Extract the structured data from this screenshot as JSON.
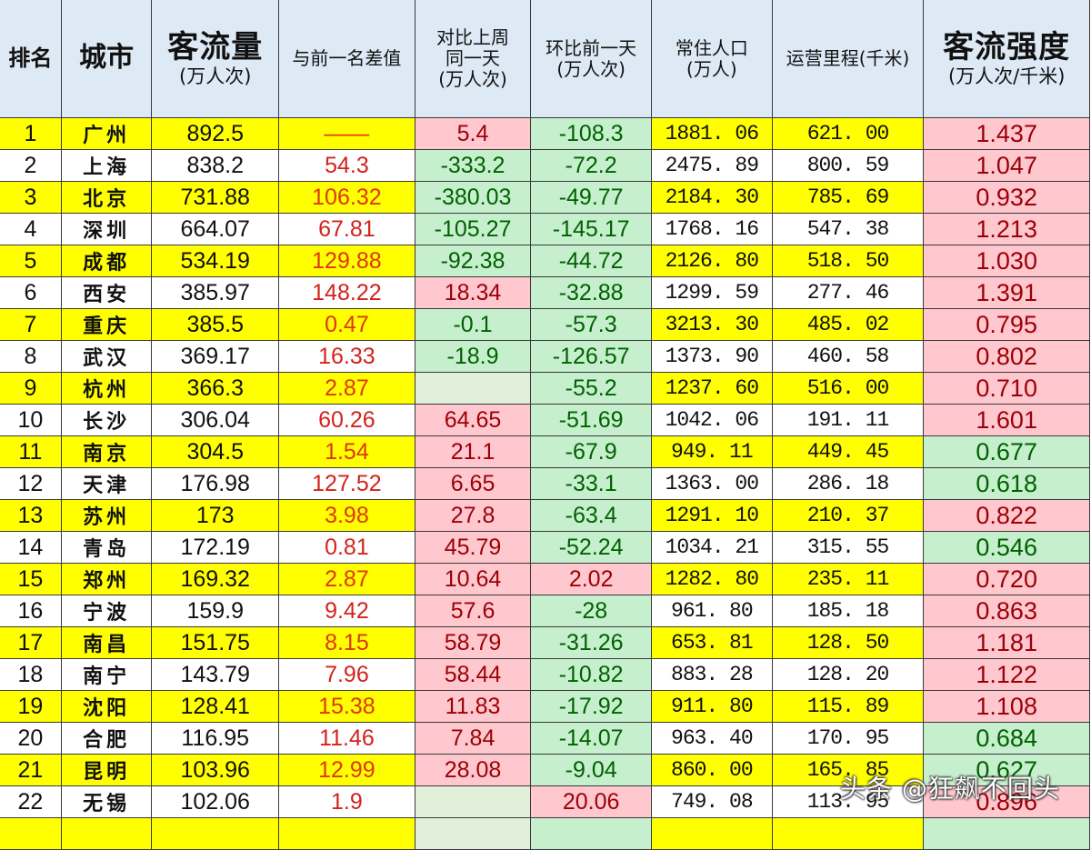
{
  "header": {
    "rank": "排名",
    "city": "城市",
    "flow_title": "客流量",
    "flow_unit": "(万人次)",
    "diff_prev": "与前一名差值",
    "week_title_1": "对比上周",
    "week_title_2": "同一天",
    "week_unit": "(万人次)",
    "day_title": "环比前一天",
    "day_unit": "(万人次)",
    "pop_title": "常住人口",
    "pop_unit": "(万人)",
    "mileage_title": "运营里程(千米)",
    "intensity_title": "客流强度",
    "intensity_unit": "(万人次/千米)"
  },
  "colors": {
    "header_bg": "#dde9f5",
    "highlight_yellow": "#ffff00",
    "positive_pink_bg": "#ffc7ce",
    "positive_pink_text": "#9c0006",
    "negative_green_bg": "#c6efce",
    "negative_green_text": "#006100",
    "diff_red": "#d2231c"
  },
  "rows": [
    {
      "rank": "1",
      "city": "广州",
      "flow": "892.5",
      "diff": "——",
      "week": "5.4",
      "week_c": "pink",
      "day": "-108.3",
      "day_c": "green",
      "pop": "1881. 06",
      "mileage": "621. 00",
      "intensity": "1.437",
      "int_c": "pink"
    },
    {
      "rank": "2",
      "city": "上海",
      "flow": "838.2",
      "diff": "54.3",
      "week": "-333.2",
      "week_c": "green",
      "day": "-72.2",
      "day_c": "green",
      "pop": "2475. 89",
      "mileage": "800. 59",
      "intensity": "1.047",
      "int_c": "pink"
    },
    {
      "rank": "3",
      "city": "北京",
      "flow": "731.88",
      "diff": "106.32",
      "week": "-380.03",
      "week_c": "green",
      "day": "-49.77",
      "day_c": "green",
      "pop": "2184. 30",
      "mileage": "785. 69",
      "intensity": "0.932",
      "int_c": "pink"
    },
    {
      "rank": "4",
      "city": "深圳",
      "flow": "664.07",
      "diff": "67.81",
      "week": "-105.27",
      "week_c": "green",
      "day": "-145.17",
      "day_c": "green",
      "pop": "1768. 16",
      "mileage": "547. 38",
      "intensity": "1.213",
      "int_c": "pink"
    },
    {
      "rank": "5",
      "city": "成都",
      "flow": "534.19",
      "diff": "129.88",
      "week": "-92.38",
      "week_c": "green",
      "day": "-44.72",
      "day_c": "green",
      "pop": "2126. 80",
      "mileage": "518. 50",
      "intensity": "1.030",
      "int_c": "pink"
    },
    {
      "rank": "6",
      "city": "西安",
      "flow": "385.97",
      "diff": "148.22",
      "week": "18.34",
      "week_c": "pink",
      "day": "-32.88",
      "day_c": "green",
      "pop": "1299. 59",
      "mileage": "277. 46",
      "intensity": "1.391",
      "int_c": "pink"
    },
    {
      "rank": "7",
      "city": "重庆",
      "flow": "385.5",
      "diff": "0.47",
      "week": "-0.1",
      "week_c": "green",
      "day": "-57.3",
      "day_c": "green",
      "pop": "3213. 30",
      "mileage": "485. 02",
      "intensity": "0.795",
      "int_c": "pink"
    },
    {
      "rank": "8",
      "city": "武汉",
      "flow": "369.17",
      "diff": "16.33",
      "week": "-18.9",
      "week_c": "green",
      "day": "-126.57",
      "day_c": "green",
      "pop": "1373. 90",
      "mileage": "460. 58",
      "intensity": "0.802",
      "int_c": "pink"
    },
    {
      "rank": "9",
      "city": "杭州",
      "flow": "366.3",
      "diff": "2.87",
      "week": "",
      "week_c": "blank",
      "day": "-55.2",
      "day_c": "green",
      "pop": "1237. 60",
      "mileage": "516. 00",
      "intensity": "0.710",
      "int_c": "pink"
    },
    {
      "rank": "10",
      "city": "长沙",
      "flow": "306.04",
      "diff": "60.26",
      "week": "64.65",
      "week_c": "pink",
      "day": "-51.69",
      "day_c": "green",
      "pop": "1042. 06",
      "mileage": "191. 11",
      "intensity": "1.601",
      "int_c": "pink"
    },
    {
      "rank": "11",
      "city": "南京",
      "flow": "304.5",
      "diff": "1.54",
      "week": "21.1",
      "week_c": "pink",
      "day": "-67.9",
      "day_c": "green",
      "pop": "949. 11",
      "mileage": "449. 45",
      "intensity": "0.677",
      "int_c": "green"
    },
    {
      "rank": "12",
      "city": "天津",
      "flow": "176.98",
      "diff": "127.52",
      "week": "6.65",
      "week_c": "pink",
      "day": "-33.1",
      "day_c": "green",
      "pop": "1363. 00",
      "mileage": "286. 18",
      "intensity": "0.618",
      "int_c": "green"
    },
    {
      "rank": "13",
      "city": "苏州",
      "flow": "173",
      "diff": "3.98",
      "week": "27.8",
      "week_c": "pink",
      "day": "-63.4",
      "day_c": "green",
      "pop": "1291. 10",
      "mileage": "210. 37",
      "intensity": "0.822",
      "int_c": "pink"
    },
    {
      "rank": "14",
      "city": "青岛",
      "flow": "172.19",
      "diff": "0.81",
      "week": "45.79",
      "week_c": "pink",
      "day": "-52.24",
      "day_c": "green",
      "pop": "1034. 21",
      "mileage": "315. 55",
      "intensity": "0.546",
      "int_c": "green"
    },
    {
      "rank": "15",
      "city": "郑州",
      "flow": "169.32",
      "diff": "2.87",
      "week": "10.64",
      "week_c": "pink",
      "day": "2.02",
      "day_c": "pink",
      "pop": "1282. 80",
      "mileage": "235. 11",
      "intensity": "0.720",
      "int_c": "pink"
    },
    {
      "rank": "16",
      "city": "宁波",
      "flow": "159.9",
      "diff": "9.42",
      "week": "57.6",
      "week_c": "pink",
      "day": "-28",
      "day_c": "green",
      "pop": "961. 80",
      "mileage": "185. 18",
      "intensity": "0.863",
      "int_c": "pink"
    },
    {
      "rank": "17",
      "city": "南昌",
      "flow": "151.75",
      "diff": "8.15",
      "week": "58.79",
      "week_c": "pink",
      "day": "-31.26",
      "day_c": "green",
      "pop": "653. 81",
      "mileage": "128. 50",
      "intensity": "1.181",
      "int_c": "pink"
    },
    {
      "rank": "18",
      "city": "南宁",
      "flow": "143.79",
      "diff": "7.96",
      "week": "58.44",
      "week_c": "pink",
      "day": "-10.82",
      "day_c": "green",
      "pop": "883. 28",
      "mileage": "128. 20",
      "intensity": "1.122",
      "int_c": "pink"
    },
    {
      "rank": "19",
      "city": "沈阳",
      "flow": "128.41",
      "diff": "15.38",
      "week": "11.83",
      "week_c": "pink",
      "day": "-17.92",
      "day_c": "green",
      "pop": "911. 80",
      "mileage": "115. 89",
      "intensity": "1.108",
      "int_c": "pink"
    },
    {
      "rank": "20",
      "city": "合肥",
      "flow": "116.95",
      "diff": "11.46",
      "week": "7.84",
      "week_c": "pink",
      "day": "-14.07",
      "day_c": "green",
      "pop": "963. 40",
      "mileage": "170. 95",
      "intensity": "0.684",
      "int_c": "green"
    },
    {
      "rank": "21",
      "city": "昆明",
      "flow": "103.96",
      "diff": "12.99",
      "week": "28.08",
      "week_c": "pink",
      "day": "-9.04",
      "day_c": "green",
      "pop": "860. 00",
      "mileage": "165. 85",
      "intensity": "0.627",
      "int_c": "green"
    },
    {
      "rank": "22",
      "city": "无锡",
      "flow": "102.06",
      "diff": "1.9",
      "week": "",
      "week_c": "blank",
      "day": "20.06",
      "day_c": "pink",
      "pop": "749. 08",
      "mileage": "113. 95",
      "intensity": "0.896",
      "int_c": "pink"
    }
  ],
  "watermark": "头条 @狂飙不回头"
}
